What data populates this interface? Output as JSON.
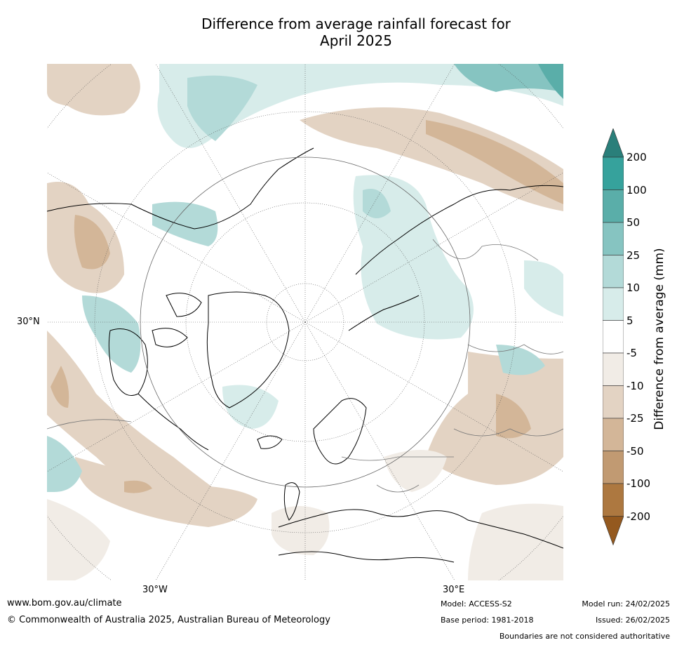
{
  "title_line1": "Difference from average rainfall forecast for",
  "title_line2": "April 2025",
  "map": {
    "projection": "north polar stereographic",
    "lat_label": "30°N",
    "lon_labels": [
      "30°W",
      "30°E"
    ]
  },
  "colorbar": {
    "title": "Difference from average (mm)",
    "levels": [
      "200",
      "100",
      "50",
      "25",
      "10",
      "5",
      "-5",
      "-10",
      "-25",
      "-50",
      "-100",
      "-200"
    ],
    "colors": [
      "#2a7f7a",
      "#36a29c",
      "#5aaea9",
      "#86c4c1",
      "#b3dad8",
      "#d7ecea",
      "#ffffff",
      "#f1ece6",
      "#e3d3c3",
      "#d3b698",
      "#c19a72",
      "#ad7840",
      "#94591f"
    ]
  },
  "footer": {
    "website": "www.bom.gov.au/climate",
    "copyright": "© Commonwealth of Australia 2025, Australian Bureau of Meteorology",
    "model": "Model: ACCESS-S2",
    "model_run": "Model run: 24/02/2025",
    "base_period": "Base period: 1981-2018",
    "issued": "Issued: 26/02/2025",
    "boundaries_note": "Boundaries are not considered authoritative"
  }
}
